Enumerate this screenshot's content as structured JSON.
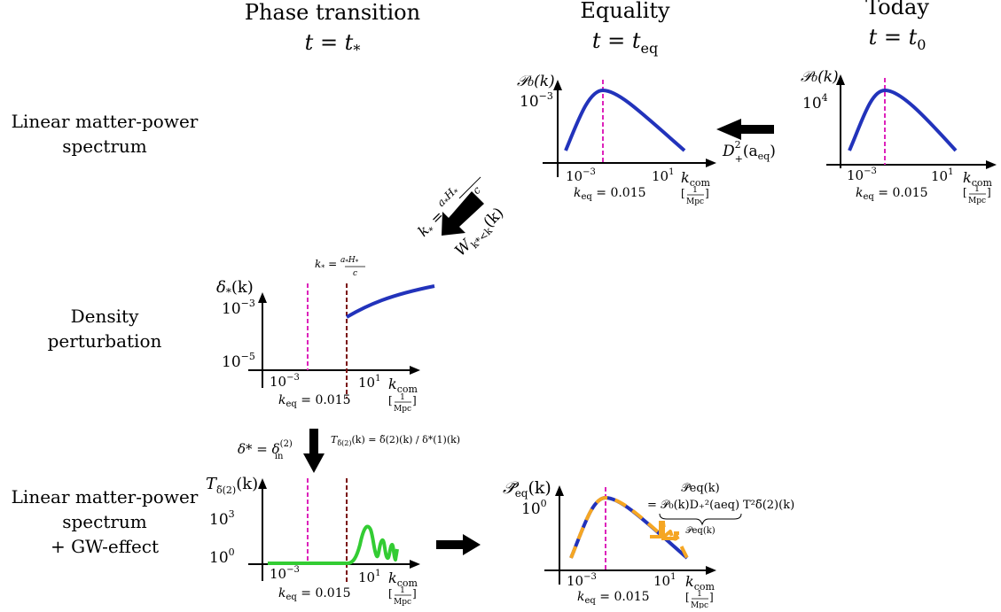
{
  "columns": {
    "phase_title": "Phase transition",
    "phase_time": "t = t",
    "phase_time_sub": "*",
    "equality_title": "Equality",
    "equality_time": "t = t",
    "equality_time_sub": "eq",
    "today_title": "Today",
    "today_time": "t = t",
    "today_time_sub": "0"
  },
  "rows": {
    "linear_line1": "Linear matter-power",
    "linear_line2": "spectrum",
    "density_line1": "Density",
    "density_line2": "perturbation",
    "gw_line1": "Linear matter-power",
    "gw_line2": "spectrum",
    "gw_line3": "+ GW-effect"
  },
  "axis": {
    "x_label": "k",
    "x_label_sub": "com",
    "x_unit": "[1/Mpc]",
    "x_unit_num": "1",
    "x_unit_den": "Mpc",
    "tick_low": "10",
    "tick_low_exp": "−3",
    "tick_high": "10",
    "tick_high_exp": "1",
    "k_eq": "k",
    "k_eq_sub": "eq",
    "k_eq_value": " = 0.015"
  },
  "panels": {
    "today": {
      "ylabel": "𝒫₀(k)",
      "ytick": "10",
      "ytick_exp": "4"
    },
    "equality": {
      "ylabel": "𝒫₀(k)",
      "ytick": "10",
      "ytick_exp": "−3"
    },
    "density": {
      "ylabel": "δ",
      "ylabel_sub": "*",
      "ylabel_tail": "(k)",
      "ytick_high": "10",
      "ytick_high_exp": "−3",
      "ytick_low": "10",
      "ytick_low_exp": "−5",
      "top_note": "k* = a*H*/c"
    },
    "transfer": {
      "ylabel": "T",
      "ylabel_sub": "δ̃(2)",
      "ylabel_tail": "(k)",
      "ytick_high": "10",
      "ytick_high_exp": "3",
      "ytick_low": "10",
      "ytick_low_exp": "0"
    },
    "final": {
      "ylabel": "𝒫̃",
      "ylabel_sub": "eq",
      "ylabel_tail": "(k)",
      "ytick": "10",
      "ytick_exp": "0",
      "brace_top": "𝒫̃eq(k)",
      "brace_eq": "= 𝒫₀(k)D₊²(aeq)",
      "brace_tail": "T²δ̃(2)(k)",
      "brace_under": "𝒫eq(k)"
    }
  },
  "arrows": {
    "growth_label": "D",
    "growth_sub": "+",
    "growth_sup": "2",
    "growth_arg": "(a",
    "growth_arg_sub": "eq",
    "growth_close": ")",
    "cut_k_label": "k* = a*H*/c",
    "window_label": "W",
    "window_sub": "k*<k",
    "window_tail": "(k)",
    "init_label": "δ* = δ",
    "init_sub": "in",
    "init_sup": "(2)",
    "transfer_label": "T",
    "transfer_sub": "δ̃(2)",
    "transfer_tail": "(k) = δ̃(2)(k) / δ*(1)(k)"
  },
  "colors": {
    "spectrum": "#2233bb",
    "magenta": "#dd22bb",
    "darkred": "#7a1010",
    "green": "#33cc33",
    "orange": "#f5a623"
  }
}
